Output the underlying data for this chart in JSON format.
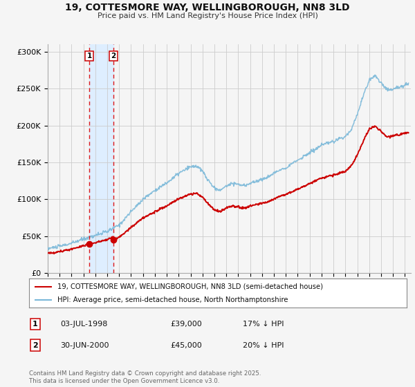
{
  "title": "19, COTTESMORE WAY, WELLINGBOROUGH, NN8 3LD",
  "subtitle": "Price paid vs. HM Land Registry's House Price Index (HPI)",
  "legend_line1": "19, COTTESMORE WAY, WELLINGBOROUGH, NN8 3LD (semi-detached house)",
  "legend_line2": "HPI: Average price, semi-detached house, North Northamptonshire",
  "footnote": "Contains HM Land Registry data © Crown copyright and database right 2025.\nThis data is licensed under the Open Government Licence v3.0.",
  "sale1_label": "1",
  "sale1_date": "03-JUL-1998",
  "sale1_price": "£39,000",
  "sale1_hpi": "17% ↓ HPI",
  "sale2_label": "2",
  "sale2_date": "30-JUN-2000",
  "sale2_price": "£45,000",
  "sale2_hpi": "20% ↓ HPI",
  "sale1_x": 1998.5,
  "sale1_y": 39000,
  "sale2_x": 2000.5,
  "sale2_y": 45000,
  "ylim": [
    0,
    310000
  ],
  "xlim": [
    1995.0,
    2025.5
  ],
  "yticks": [
    0,
    50000,
    100000,
    150000,
    200000,
    250000,
    300000
  ],
  "ytick_labels": [
    "£0",
    "£50K",
    "£100K",
    "£150K",
    "£200K",
    "£250K",
    "£300K"
  ],
  "hpi_color": "#7ab8d9",
  "price_color": "#cc0000",
  "shade_color": "#deeeff",
  "dot_color": "#cc0000",
  "vline_color": "#dd0000",
  "background_color": "#f5f5f5",
  "grid_color": "#cccccc",
  "chart_bg": "#f5f5f5"
}
